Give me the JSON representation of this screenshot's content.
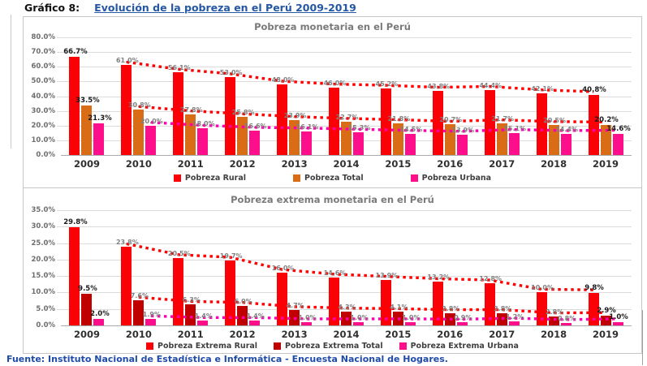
{
  "header": {
    "figure_label": "Gráfico 8:",
    "title": "Evolución de la pobreza en el Perú 2009-2019"
  },
  "footer": {
    "source": "Fuente: Instituto Nacional de Estadística e Informática - Encuesta Nacional de Hogares."
  },
  "colors": {
    "rural_red": "#FB0006",
    "total_orange": "#D96C17",
    "urban_pink": "#FF0E8C",
    "extreme_total_dark_red": "#C00000",
    "trend_red": "#FF0000",
    "trend_magenta": "#FF00AE",
    "gridline": "#DCDCDC",
    "title_gray": "#7A7A7A",
    "heading_blue": "#2457A4"
  },
  "chart_data": [
    {
      "type": "bar",
      "title": "Pobreza monetaria en el Perú",
      "categories": [
        "2009",
        "2010",
        "2011",
        "2012",
        "2013",
        "2014",
        "2015",
        "2016",
        "2017",
        "2018",
        "2019"
      ],
      "series": [
        {
          "name": "Pobreza Rural",
          "color": "#FB0006",
          "trend_color": "#FF0000",
          "values": [
            66.7,
            61.0,
            56.1,
            53.0,
            48.0,
            46.0,
            45.2,
            43.8,
            44.4,
            42.1,
            40.8
          ]
        },
        {
          "name": "Pobreza Total",
          "color": "#D96C17",
          "trend_color": "#FF0000",
          "values": [
            33.5,
            30.8,
            27.8,
            25.8,
            23.9,
            22.7,
            21.8,
            20.7,
            21.7,
            20.5,
            20.2
          ]
        },
        {
          "name": "Pobreza Urbana",
          "color": "#FF0E8C",
          "trend_color": "#FF00AE",
          "values": [
            21.3,
            20.0,
            18.0,
            16.6,
            16.1,
            15.3,
            14.5,
            13.9,
            15.1,
            14.4,
            14.6
          ]
        }
      ],
      "ylim": [
        0,
        80
      ],
      "ytick_step": 10,
      "grid": true,
      "legend_position": "bottom",
      "label_format": "one-decimal-percent",
      "trendline_start_index": 1
    },
    {
      "type": "bar",
      "title": "Pobreza extrema monetaria  en el Perú",
      "categories": [
        "2009",
        "2010",
        "2011",
        "2012",
        "2013",
        "2014",
        "2015",
        "2016",
        "2017",
        "2018",
        "2019"
      ],
      "series": [
        {
          "name": "Pobreza Extrema Rural",
          "color": "#FB0006",
          "trend_color": "#FF0000",
          "values": [
            29.8,
            23.8,
            20.5,
            19.7,
            16.0,
            14.6,
            13.9,
            13.2,
            12.8,
            10.0,
            9.8
          ]
        },
        {
          "name": "Pobreza Extrema Total",
          "color": "#C00000",
          "trend_color": "#FF0000",
          "values": [
            9.5,
            7.6,
            6.3,
            6.0,
            4.7,
            4.3,
            4.1,
            3.8,
            3.8,
            2.8,
            2.9
          ]
        },
        {
          "name": "Pobreza Extrema Urbana",
          "color": "#FF0E8C",
          "trend_color": "#FF00AE",
          "values": [
            2.0,
            1.9,
            1.4,
            1.4,
            1.0,
            1.0,
            1.0,
            0.9,
            1.2,
            0.8,
            1.0
          ]
        }
      ],
      "ylim": [
        0,
        35
      ],
      "ytick_step": 5,
      "grid": true,
      "legend_position": "bottom",
      "label_format": "one-decimal-percent",
      "trendline_start_index": 1
    }
  ]
}
